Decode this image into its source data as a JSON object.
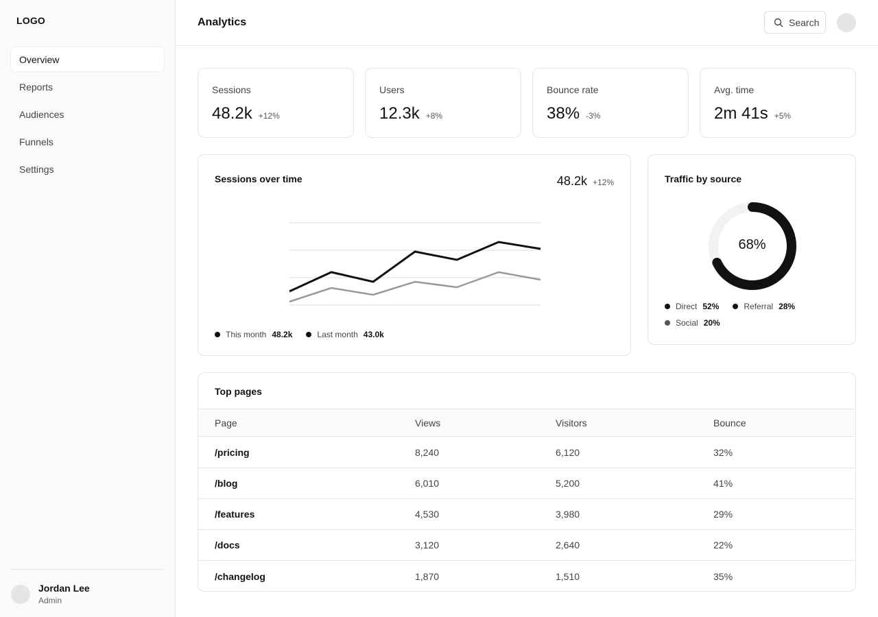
{
  "sidebar": {
    "logo": "LOGO",
    "items": [
      {
        "label": "Overview",
        "active": true
      },
      {
        "label": "Reports",
        "active": false
      },
      {
        "label": "Audiences",
        "active": false
      },
      {
        "label": "Funnels",
        "active": false
      },
      {
        "label": "Settings",
        "active": false
      }
    ],
    "user": {
      "name": "Jordan Lee",
      "role": "Admin"
    }
  },
  "header": {
    "title": "Analytics",
    "search_label": "Search"
  },
  "stats": [
    {
      "label": "Sessions",
      "value": "48.2k",
      "delta": "+12%"
    },
    {
      "label": "Users",
      "value": "12.3k",
      "delta": "+8%"
    },
    {
      "label": "Bounce rate",
      "value": "38%",
      "delta": "-3%"
    },
    {
      "label": "Avg. time",
      "value": "2m 41s",
      "delta": "+5%"
    }
  ],
  "sessions_chart": {
    "title": "Sessions over time",
    "total": "48.2k",
    "delta": "+12%",
    "legend": [
      {
        "name": "This month",
        "value": "48.2k",
        "color": "#111111"
      },
      {
        "name": "Last month",
        "value": "43.0k",
        "color": "#111111"
      }
    ]
  },
  "traffic": {
    "title": "Traffic by source",
    "center_label": "68%",
    "legend": [
      {
        "name": "Direct",
        "value": "52%",
        "color": "#111111"
      },
      {
        "name": "Referral",
        "value": "28%",
        "color": "#111111"
      },
      {
        "name": "Social",
        "value": "20%",
        "color": "#555555"
      }
    ]
  },
  "top_pages": {
    "title": "Top pages",
    "columns": [
      "Page",
      "Views",
      "Visitors",
      "Bounce"
    ],
    "rows": [
      [
        "/pricing",
        "8,240",
        "6,120",
        "32%"
      ],
      [
        "/blog",
        "6,010",
        "5,200",
        "41%"
      ],
      [
        "/features",
        "4,530",
        "3,980",
        "29%"
      ],
      [
        "/docs",
        "3,120",
        "2,640",
        "22%"
      ],
      [
        "/changelog",
        "1,870",
        "1,510",
        "35%"
      ]
    ]
  },
  "chart_data": [
    {
      "type": "line",
      "title": "Sessions over time",
      "series": [
        {
          "name": "This month",
          "values": [
            2,
            4.8,
            3.4,
            7.8,
            6.6,
            9.2,
            8.2
          ],
          "color": "#111111"
        },
        {
          "name": "Last month",
          "values": [
            0.5,
            2.5,
            1.5,
            3.4,
            2.6,
            4.8,
            3.7
          ],
          "color": "#999999"
        }
      ],
      "ylim": [
        0,
        12
      ],
      "grid": true
    },
    {
      "type": "pie",
      "title": "Traffic by source",
      "center_label": "68%",
      "progress": 0.68,
      "color": "#111111",
      "track_color": "#f2f2f2"
    }
  ]
}
